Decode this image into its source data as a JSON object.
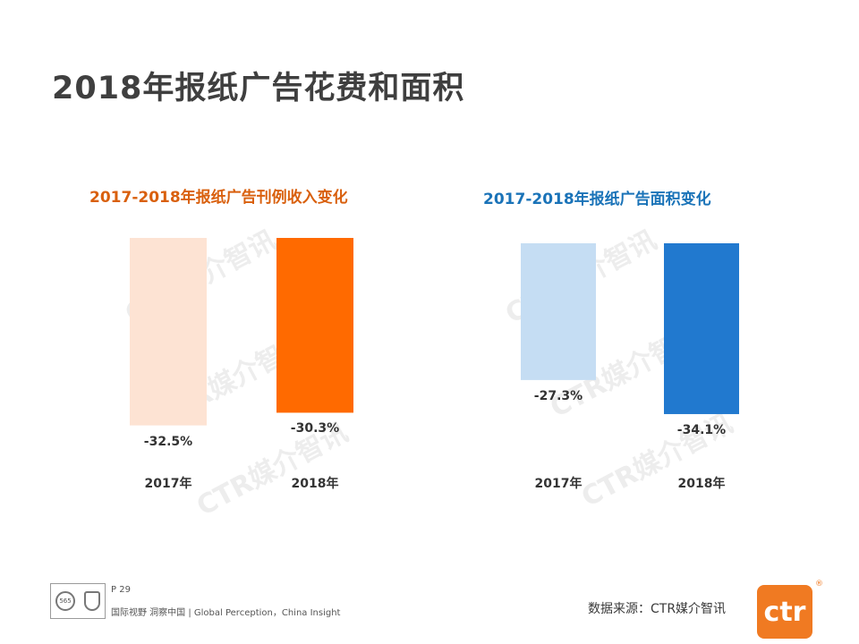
{
  "page": {
    "title": "2018年报纸广告花费和面积"
  },
  "chart_data": [
    {
      "type": "bar",
      "title": "2017-2018年报纸广告刊例收入变化",
      "categories": [
        "2017年",
        "2018年"
      ],
      "values": [
        -32.5,
        -30.3
      ],
      "value_labels": [
        "-32.5%",
        "-30.3%"
      ],
      "unit": "%",
      "ylim": [
        -35,
        0
      ],
      "colors": [
        "#fde3d3",
        "#ff6a00"
      ],
      "title_color": "#d9600e",
      "xlabel": "",
      "ylabel": ""
    },
    {
      "type": "bar",
      "title": "2017-2018年报纸广告面积变化",
      "categories": [
        "2017年",
        "2018年"
      ],
      "values": [
        -27.3,
        -34.1
      ],
      "value_labels": [
        "-27.3%",
        "-34.1%"
      ],
      "unit": "%",
      "ylim": [
        -35,
        0
      ],
      "colors": [
        "#c5ddf3",
        "#2179cf"
      ],
      "title_color": "#1a73b8",
      "xlabel": "",
      "ylabel": ""
    }
  ],
  "watermark": {
    "text": "CTR媒介智讯"
  },
  "footer": {
    "page_number": "P 29",
    "slogan": "国际视野  洞察中国 |  Global Perception，China Insight",
    "cert_text": "565",
    "source": "数据来源：CTR媒介智讯",
    "logo_text": "ctr",
    "logo_registered": "®",
    "logo_color": "#f07a22"
  }
}
